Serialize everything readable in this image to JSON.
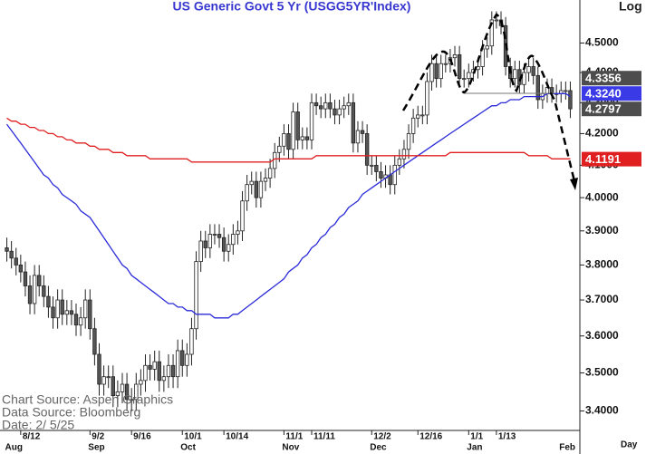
{
  "chart_data": {
    "type": "candlestick",
    "title": "US  Generic  Govt  5  Yr  (USGG5YR'Index)",
    "log_label": "Log",
    "x_label": "Day",
    "notes": [
      "Chart  Source:  Aspen  Graphics",
      "Data  Source:  Bloomberg",
      "Date:    2/  5/25"
    ],
    "log": true,
    "ylim": [
      3.35,
      4.65
    ],
    "yticks": [
      {
        "value": 3.4,
        "label": "3.4000"
      },
      {
        "value": 3.5,
        "label": "3.5000"
      },
      {
        "value": 3.6,
        "label": "3.6000"
      },
      {
        "value": 3.7,
        "label": "3.7000"
      },
      {
        "value": 3.8,
        "label": "3.8000"
      },
      {
        "value": 3.9,
        "label": "3.9000"
      },
      {
        "value": 4.0,
        "label": "4.0000"
      },
      {
        "value": 4.1,
        "label": "4.1000"
      },
      {
        "value": 4.2,
        "label": "4.2000"
      },
      {
        "value": 4.3,
        "label": "4.3000"
      },
      {
        "value": 4.4,
        "label": "4.4000"
      },
      {
        "value": 4.5,
        "label": "4.5000"
      }
    ],
    "categories": [
      null,
      null,
      null,
      "8/12",
      null,
      null,
      null,
      null,
      null,
      null,
      null,
      null,
      null,
      null,
      null,
      null,
      null,
      null,
      "9/2",
      null,
      null,
      null,
      null,
      null,
      null,
      null,
      null,
      "9/16",
      null,
      null,
      null,
      null,
      null,
      null,
      null,
      null,
      null,
      null,
      "10/1",
      null,
      null,
      null,
      null,
      null,
      null,
      null,
      null,
      "10/14",
      null,
      null,
      null,
      null,
      null,
      null,
      null,
      null,
      null,
      null,
      null,
      null,
      "11/1",
      null,
      null,
      null,
      null,
      null,
      "11/11",
      null,
      null,
      null,
      null,
      null,
      null,
      null,
      null,
      null,
      null,
      null,
      null,
      "12/2",
      null,
      null,
      null,
      null,
      null,
      null,
      null,
      null,
      null,
      "12/16",
      null,
      null,
      null,
      null,
      null,
      null,
      null,
      null,
      null,
      null,
      "1/1",
      null,
      null,
      null,
      null,
      null,
      "1/13",
      null,
      null,
      null,
      null,
      null,
      null,
      null,
      null,
      null,
      null,
      null,
      null,
      null,
      null,
      null,
      null
    ],
    "month_labels": [
      "Aug",
      null,
      null,
      null,
      null,
      null,
      null,
      null,
      null,
      null,
      null,
      null,
      null,
      null,
      null,
      null,
      null,
      null,
      "Sep",
      null,
      null,
      null,
      null,
      null,
      null,
      null,
      null,
      null,
      null,
      null,
      null,
      null,
      null,
      null,
      null,
      null,
      null,
      null,
      "Oct",
      null,
      null,
      null,
      null,
      null,
      null,
      null,
      null,
      null,
      null,
      null,
      null,
      null,
      null,
      null,
      null,
      null,
      null,
      null,
      null,
      null,
      "Nov",
      null,
      null,
      null,
      null,
      null,
      null,
      null,
      null,
      null,
      null,
      null,
      null,
      null,
      null,
      null,
      null,
      null,
      null,
      "Dec",
      null,
      null,
      null,
      null,
      null,
      null,
      null,
      null,
      null,
      null,
      null,
      null,
      null,
      null,
      null,
      null,
      null,
      null,
      null,
      null,
      "Jan",
      null,
      null,
      null,
      null,
      null,
      null,
      null,
      null,
      null,
      null,
      null,
      null,
      null,
      null,
      null,
      null,
      null,
      null,
      null,
      "Feb",
      null,
      null
    ],
    "open": [
      3.85,
      3.84,
      3.82,
      3.8,
      3.78,
      3.74,
      3.69,
      3.77,
      3.74,
      3.71,
      3.68,
      3.65,
      3.7,
      3.66,
      3.67,
      3.66,
      3.63,
      3.65,
      3.7,
      3.62,
      3.55,
      3.47,
      3.49,
      3.49,
      3.44,
      3.45,
      3.47,
      3.43,
      3.43,
      3.47,
      3.48,
      3.52,
      3.51,
      3.53,
      3.48,
      3.49,
      3.52,
      3.49,
      3.56,
      3.52,
      3.55,
      3.62,
      3.81,
      3.87,
      3.85,
      3.89,
      3.89,
      3.88,
      3.84,
      3.86,
      3.89,
      3.9,
      3.99,
      4.04,
      4.05,
      4.0,
      4.05,
      4.06,
      4.09,
      4.14,
      4.16,
      4.2,
      4.15,
      4.27,
      4.18,
      4.19,
      4.18,
      4.3,
      4.29,
      4.28,
      4.3,
      4.28,
      4.26,
      4.28,
      4.29,
      4.3,
      4.17,
      4.21,
      4.2,
      4.1,
      4.1,
      4.08,
      4.06,
      4.07,
      4.04,
      4.1,
      4.12,
      4.15,
      4.2,
      4.25,
      4.26,
      4.26,
      4.37,
      4.43,
      4.38,
      4.43,
      4.43,
      4.45,
      4.46,
      4.38,
      4.38,
      4.4,
      4.41,
      4.42,
      4.48,
      4.49,
      4.58,
      4.58,
      4.56,
      4.42,
      4.38,
      4.41,
      4.36,
      4.4,
      4.42,
      4.39,
      4.31,
      4.33,
      4.35,
      4.33,
      4.33,
      4.34,
      4.34
    ],
    "high": [
      3.88,
      3.87,
      3.85,
      3.83,
      3.81,
      3.77,
      3.8,
      3.8,
      3.77,
      3.74,
      3.71,
      3.73,
      3.73,
      3.7,
      3.7,
      3.69,
      3.68,
      3.73,
      3.73,
      3.65,
      3.58,
      3.52,
      3.52,
      3.52,
      3.48,
      3.5,
      3.5,
      3.46,
      3.5,
      3.51,
      3.55,
      3.55,
      3.56,
      3.56,
      3.52,
      3.55,
      3.55,
      3.59,
      3.59,
      3.58,
      3.65,
      3.84,
      3.9,
      3.9,
      3.92,
      3.92,
      3.92,
      3.91,
      3.89,
      3.92,
      3.93,
      4.02,
      4.07,
      4.08,
      4.08,
      4.08,
      4.09,
      4.12,
      4.17,
      4.19,
      4.23,
      4.23,
      4.3,
      4.3,
      4.22,
      4.22,
      4.33,
      4.33,
      4.32,
      4.33,
      4.33,
      4.31,
      4.31,
      4.32,
      4.33,
      4.33,
      4.24,
      4.24,
      4.23,
      4.13,
      4.13,
      4.11,
      4.1,
      4.1,
      4.13,
      4.15,
      4.18,
      4.23,
      4.28,
      4.29,
      4.29,
      4.4,
      4.46,
      4.46,
      4.46,
      4.46,
      4.48,
      4.49,
      4.49,
      4.41,
      4.43,
      4.44,
      4.45,
      4.51,
      4.52,
      4.61,
      4.61,
      4.61,
      4.59,
      4.45,
      4.44,
      4.44,
      4.43,
      4.45,
      4.45,
      4.42,
      4.36,
      4.38,
      4.38,
      4.36,
      4.37,
      4.37,
      4.37
    ],
    "low": [
      3.81,
      3.79,
      3.77,
      3.75,
      3.71,
      3.66,
      3.66,
      3.71,
      3.68,
      3.65,
      3.62,
      3.62,
      3.63,
      3.63,
      3.63,
      3.6,
      3.6,
      3.62,
      3.59,
      3.52,
      3.44,
      3.44,
      3.46,
      3.41,
      3.41,
      3.42,
      3.4,
      3.4,
      3.4,
      3.44,
      3.45,
      3.48,
      3.48,
      3.45,
      3.45,
      3.46,
      3.46,
      3.46,
      3.49,
      3.49,
      3.52,
      3.59,
      3.78,
      3.82,
      3.82,
      3.86,
      3.85,
      3.81,
      3.81,
      3.83,
      3.86,
      3.87,
      3.96,
      4.01,
      3.97,
      3.97,
      4.02,
      4.03,
      4.06,
      4.11,
      4.13,
      4.12,
      4.12,
      4.15,
      4.15,
      4.15,
      4.15,
      4.26,
      4.25,
      4.25,
      4.25,
      4.23,
      4.23,
      4.25,
      4.26,
      4.14,
      4.14,
      4.17,
      4.07,
      4.07,
      4.05,
      4.03,
      4.03,
      4.01,
      4.01,
      4.07,
      4.09,
      4.12,
      4.17,
      4.22,
      4.23,
      4.23,
      4.34,
      4.35,
      4.35,
      4.4,
      4.4,
      4.42,
      4.35,
      4.35,
      4.35,
      4.37,
      4.38,
      4.39,
      4.45,
      4.46,
      4.55,
      4.53,
      4.39,
      4.35,
      4.35,
      4.33,
      4.33,
      4.37,
      4.36,
      4.28,
      4.28,
      4.3,
      4.3,
      4.3,
      4.3,
      4.31,
      4.25
    ],
    "close": [
      3.84,
      3.82,
      3.8,
      3.78,
      3.74,
      3.69,
      3.77,
      3.74,
      3.71,
      3.68,
      3.65,
      3.7,
      3.66,
      3.67,
      3.66,
      3.63,
      3.65,
      3.7,
      3.62,
      3.55,
      3.47,
      3.49,
      3.49,
      3.44,
      3.45,
      3.47,
      3.43,
      3.43,
      3.47,
      3.48,
      3.52,
      3.51,
      3.53,
      3.48,
      3.49,
      3.52,
      3.49,
      3.56,
      3.52,
      3.55,
      3.62,
      3.81,
      3.87,
      3.85,
      3.89,
      3.89,
      3.88,
      3.84,
      3.86,
      3.89,
      3.9,
      3.99,
      4.04,
      4.05,
      4.0,
      4.05,
      4.06,
      4.09,
      4.14,
      4.16,
      4.2,
      4.15,
      4.27,
      4.18,
      4.19,
      4.18,
      4.3,
      4.29,
      4.28,
      4.3,
      4.28,
      4.26,
      4.28,
      4.29,
      4.3,
      4.17,
      4.21,
      4.2,
      4.1,
      4.1,
      4.08,
      4.06,
      4.07,
      4.04,
      4.1,
      4.12,
      4.15,
      4.2,
      4.25,
      4.26,
      4.26,
      4.37,
      4.43,
      4.38,
      4.43,
      4.43,
      4.45,
      4.46,
      4.38,
      4.38,
      4.4,
      4.41,
      4.42,
      4.48,
      4.49,
      4.58,
      4.58,
      4.56,
      4.42,
      4.38,
      4.41,
      4.36,
      4.4,
      4.42,
      4.39,
      4.31,
      4.33,
      4.35,
      4.33,
      4.33,
      4.34,
      4.34,
      4.28
    ],
    "candle_up_color": "#ffffff",
    "candle_down_color": "#555555",
    "lines": [
      {
        "color": "#2b2bd9",
        "values": [
          4.23,
          4.21,
          4.19,
          4.17,
          4.15,
          4.13,
          4.11,
          4.09,
          4.07,
          4.06,
          4.04,
          4.03,
          4.01,
          4.0,
          3.99,
          3.98,
          3.96,
          3.95,
          3.94,
          3.92,
          3.9,
          3.88,
          3.86,
          3.84,
          3.82,
          3.8,
          3.79,
          3.77,
          3.76,
          3.75,
          3.74,
          3.73,
          3.72,
          3.71,
          3.7,
          3.69,
          3.69,
          3.68,
          3.68,
          3.67,
          3.67,
          3.66,
          3.66,
          3.66,
          3.66,
          3.65,
          3.65,
          3.65,
          3.65,
          3.66,
          3.66,
          3.67,
          3.68,
          3.69,
          3.7,
          3.71,
          3.72,
          3.73,
          3.74,
          3.75,
          3.76,
          3.78,
          3.79,
          3.8,
          3.82,
          3.83,
          3.85,
          3.86,
          3.88,
          3.89,
          3.91,
          3.92,
          3.94,
          3.95,
          3.97,
          3.98,
          3.99,
          4.01,
          4.02,
          4.03,
          4.04,
          4.05,
          4.06,
          4.07,
          4.08,
          4.09,
          4.1,
          4.11,
          4.12,
          4.13,
          4.14,
          4.15,
          4.16,
          4.17,
          4.18,
          4.19,
          4.2,
          4.21,
          4.22,
          4.23,
          4.24,
          4.25,
          4.26,
          4.27,
          4.28,
          4.29,
          4.29,
          4.3,
          4.3,
          4.31,
          4.31,
          4.31,
          4.32,
          4.32,
          4.32,
          4.32,
          4.32,
          4.33,
          4.33,
          4.33,
          4.33,
          4.33,
          4.32
        ]
      },
      {
        "color": "#e02020",
        "values": [
          4.25,
          4.24,
          4.24,
          4.23,
          4.23,
          4.22,
          4.22,
          4.21,
          4.21,
          4.2,
          4.2,
          4.19,
          4.19,
          4.18,
          4.18,
          4.17,
          4.17,
          4.17,
          4.16,
          4.16,
          4.15,
          4.15,
          4.15,
          4.14,
          4.14,
          4.14,
          4.13,
          4.13,
          4.13,
          4.13,
          4.13,
          4.12,
          4.12,
          4.12,
          4.12,
          4.12,
          4.12,
          4.12,
          4.12,
          4.12,
          4.11,
          4.11,
          4.11,
          4.11,
          4.11,
          4.11,
          4.11,
          4.11,
          4.11,
          4.11,
          4.11,
          4.11,
          4.11,
          4.11,
          4.11,
          4.11,
          4.11,
          4.11,
          4.12,
          4.12,
          4.12,
          4.12,
          4.12,
          4.12,
          4.12,
          4.12,
          4.12,
          4.13,
          4.13,
          4.13,
          4.13,
          4.13,
          4.13,
          4.13,
          4.13,
          4.13,
          4.13,
          4.13,
          4.13,
          4.13,
          4.13,
          4.13,
          4.13,
          4.13,
          4.13,
          4.13,
          4.13,
          4.13,
          4.13,
          4.13,
          4.13,
          4.13,
          4.13,
          4.13,
          4.13,
          4.13,
          4.14,
          4.14,
          4.14,
          4.14,
          4.14,
          4.14,
          4.14,
          4.14,
          4.14,
          4.14,
          4.14,
          4.14,
          4.14,
          4.14,
          4.14,
          4.14,
          4.14,
          4.13,
          4.13,
          4.13,
          4.13,
          4.13,
          4.12,
          4.12,
          4.12,
          4.12,
          4.12
        ]
      }
    ],
    "value_labels": [
      {
        "value": 4.3356,
        "label": "4.3356",
        "color": "#4d4d4d"
      },
      {
        "value": 4.324,
        "label": "4.3240",
        "color": "#3a3ae6"
      },
      {
        "value": 4.2797,
        "label": "4.2797",
        "color": "#4d4d4d"
      },
      {
        "value": 4.1191,
        "label": "4.1191",
        "color": "#e02020"
      }
    ]
  }
}
